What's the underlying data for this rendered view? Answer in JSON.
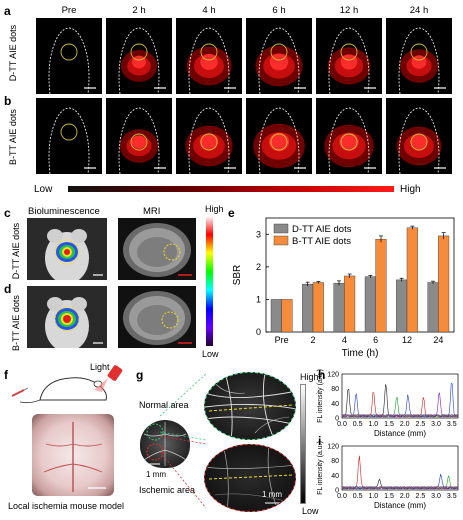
{
  "panels": {
    "a": "a",
    "b": "b",
    "c": "c",
    "d": "d",
    "e": "e",
    "f": "f",
    "g": "g",
    "h": "h",
    "i": "i"
  },
  "timepoints": [
    "Pre",
    "2 h",
    "4 h",
    "6 h",
    "12 h",
    "24 h"
  ],
  "row_labels": {
    "a": "D-TT AIE dots",
    "b": "B-TT AIE dots"
  },
  "colorbar_ab": {
    "low": "Low",
    "high": "High"
  },
  "cd_headers": {
    "bioluminescence": "Bioluminescence",
    "mri": "MRI"
  },
  "cd_row_labels": {
    "c": "D-TT AIE dots",
    "d": "B-TT AIE dots"
  },
  "colorbar_cd": {
    "high": "High",
    "low": "Low"
  },
  "f_labels": {
    "light": "Light",
    "caption": "Local ischemia mouse model"
  },
  "g_labels": {
    "normal": "Normal area",
    "ischemic": "Ischemic area",
    "scale_small": "1 mm",
    "scale_big": "1 mm",
    "high": "High",
    "low": "Low"
  },
  "chart_data": [
    {
      "type": "bar",
      "panel": "e",
      "categories": [
        "Pre",
        "2",
        "4",
        "6",
        "12",
        "24"
      ],
      "series": [
        {
          "name": "D-TT AIE dots",
          "values": [
            1.0,
            1.47,
            1.5,
            1.7,
            1.6,
            1.52
          ],
          "errors": [
            0,
            0.06,
            0.07,
            0.04,
            0.05,
            0.04
          ],
          "color": "#8a8a8a"
        },
        {
          "name": "B-TT AIE dots",
          "values": [
            1.0,
            1.52,
            1.72,
            2.85,
            3.2,
            2.95
          ],
          "errors": [
            0,
            0.03,
            0.06,
            0.1,
            0.05,
            0.1
          ],
          "color": "#f58c3c"
        }
      ],
      "xlabel": "Time (h)",
      "ylabel": "SBR",
      "ylim": [
        0,
        3.5
      ],
      "yticks": [
        0,
        1,
        2,
        3
      ],
      "legend": "top-left"
    },
    {
      "type": "line",
      "panel": "h",
      "xlabel": "Distance (mm)",
      "ylabel": "FL intensity (a.u.)",
      "xlim": [
        0,
        3.7
      ],
      "ylim": [
        0,
        120
      ],
      "yticks": [
        0,
        40,
        80,
        120
      ],
      "xticks": [
        "0.0",
        "0.5",
        "1.0",
        "1.5",
        "2.0",
        "2.5",
        "3.0",
        "3.5"
      ]
    },
    {
      "type": "line",
      "panel": "i",
      "xlabel": "Distance (mm)",
      "ylabel": "FL intensity (a.u.)",
      "xlim": [
        0,
        3.7
      ],
      "ylim": [
        0,
        120
      ],
      "yticks": [
        0,
        40,
        80,
        120
      ],
      "xticks": [
        "0.0",
        "0.5",
        "1.0",
        "1.5",
        "2.0",
        "2.5",
        "3.0",
        "3.5"
      ]
    }
  ]
}
